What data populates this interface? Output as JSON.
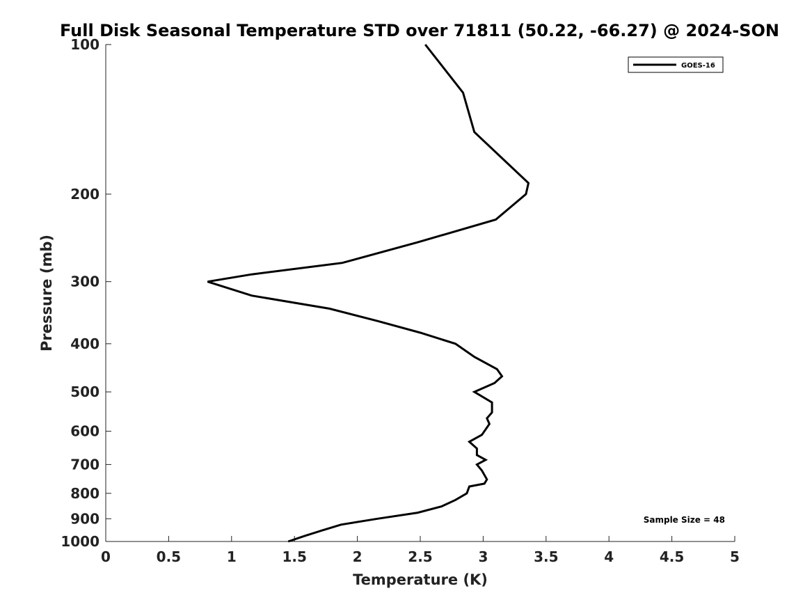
{
  "chart_data": {
    "type": "line",
    "title": "Full Disk Seasonal Temperature STD over 71811 (50.22, -66.27) @ 2024-SON",
    "xlabel": "Temperature (K)",
    "ylabel": "Pressure (mb)",
    "xlim": [
      0,
      5
    ],
    "ylim": [
      1000,
      100
    ],
    "yscale": "log",
    "y_inverted": true,
    "xticks": [
      "0",
      "0.5",
      "1",
      "1.5",
      "2",
      "2.5",
      "3",
      "3.5",
      "4",
      "4.5",
      "5"
    ],
    "xtick_values": [
      0,
      0.5,
      1,
      1.5,
      2,
      2.5,
      3,
      3.5,
      4,
      4.5,
      5
    ],
    "yticks": [
      "100",
      "200",
      "300",
      "400",
      "500",
      "600",
      "700",
      "800",
      "900",
      "1000"
    ],
    "ytick_values": [
      100,
      200,
      300,
      400,
      500,
      600,
      700,
      800,
      900,
      1000
    ],
    "grid": false,
    "legend": {
      "entries": [
        "GOES-16"
      ],
      "position": "top-right"
    },
    "annotation": "Sample Size = 48",
    "series": [
      {
        "name": "GOES-16",
        "color": "#000000",
        "points": [
          [
            2.54,
            100
          ],
          [
            2.84,
            125
          ],
          [
            2.93,
            150
          ],
          [
            3.21,
            175
          ],
          [
            3.36,
            190
          ],
          [
            3.34,
            200
          ],
          [
            3.1,
            225
          ],
          [
            2.48,
            250
          ],
          [
            1.88,
            275
          ],
          [
            1.16,
            290
          ],
          [
            0.81,
            300
          ],
          [
            1.16,
            320
          ],
          [
            1.78,
            340
          ],
          [
            2.16,
            360
          ],
          [
            2.5,
            380
          ],
          [
            2.78,
            400
          ],
          [
            2.93,
            425
          ],
          [
            3.11,
            450
          ],
          [
            3.15,
            465
          ],
          [
            3.09,
            480
          ],
          [
            2.93,
            500
          ],
          [
            3.07,
            525
          ],
          [
            3.07,
            550
          ],
          [
            3.03,
            565
          ],
          [
            3.05,
            580
          ],
          [
            2.99,
            610
          ],
          [
            2.89,
            630
          ],
          [
            2.95,
            650
          ],
          [
            2.95,
            670
          ],
          [
            3.02,
            685
          ],
          [
            2.95,
            700
          ],
          [
            2.99,
            720
          ],
          [
            3.03,
            750
          ],
          [
            3.01,
            765
          ],
          [
            2.89,
            775
          ],
          [
            2.87,
            800
          ],
          [
            2.78,
            825
          ],
          [
            2.67,
            850
          ],
          [
            2.48,
            875
          ],
          [
            2.16,
            900
          ],
          [
            1.87,
            925
          ],
          [
            1.72,
            950
          ],
          [
            1.58,
            975
          ],
          [
            1.45,
            1000
          ]
        ]
      }
    ]
  }
}
